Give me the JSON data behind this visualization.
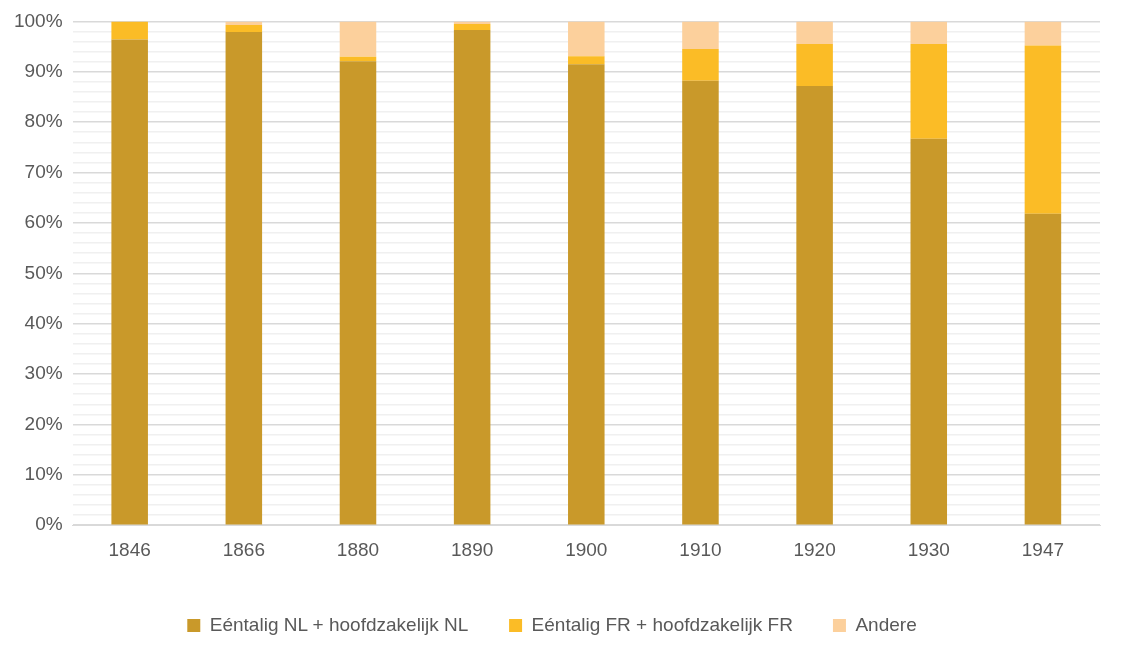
{
  "chart_data": {
    "type": "bar",
    "stacked": true,
    "categories": [
      "1846",
      "1866",
      "1880",
      "1890",
      "1900",
      "1910",
      "1920",
      "1930",
      "1947"
    ],
    "series": [
      {
        "name": "Eéntalig NL + hoofdzakelijk NL",
        "color": "#c9992a",
        "values": [
          96.4,
          97.9,
          92.1,
          98.3,
          91.5,
          88.2,
          87.2,
          76.7,
          61.8
        ]
      },
      {
        "name": "Eéntalig FR + hoofdzakelijk FR",
        "color": "#fbbc26",
        "values": [
          3.6,
          1.4,
          0.9,
          1.2,
          1.6,
          6.3,
          8.3,
          18.8,
          33.4
        ]
      },
      {
        "name": "Andere",
        "color": "#fcd09c",
        "values": [
          0,
          0.7,
          7.0,
          0.5,
          6.9,
          5.5,
          4.5,
          4.5,
          4.8
        ]
      }
    ],
    "ylim": [
      0,
      100
    ],
    "yticks": [
      {
        "value": 0,
        "label": "0%"
      },
      {
        "value": 2,
        "label": null
      },
      {
        "value": 4,
        "label": null
      },
      {
        "value": 6,
        "label": null
      },
      {
        "value": 8,
        "label": null
      },
      {
        "value": 10,
        "label": "10%"
      },
      {
        "value": 12,
        "label": null
      },
      {
        "value": 14,
        "label": null
      },
      {
        "value": 16,
        "label": null
      },
      {
        "value": 18,
        "label": null
      },
      {
        "value": 20,
        "label": "20%"
      },
      {
        "value": 22,
        "label": null
      },
      {
        "value": 24,
        "label": null
      },
      {
        "value": 26,
        "label": null
      },
      {
        "value": 28,
        "label": null
      },
      {
        "value": 30,
        "label": "30%"
      },
      {
        "value": 32,
        "label": null
      },
      {
        "value": 34,
        "label": null
      },
      {
        "value": 36,
        "label": null
      },
      {
        "value": 38,
        "label": null
      },
      {
        "value": 40,
        "label": "40%"
      },
      {
        "value": 42,
        "label": null
      },
      {
        "value": 44,
        "label": null
      },
      {
        "value": 46,
        "label": null
      },
      {
        "value": 48,
        "label": null
      },
      {
        "value": 50,
        "label": "50%"
      },
      {
        "value": 52,
        "label": null
      },
      {
        "value": 54,
        "label": null
      },
      {
        "value": 56,
        "label": null
      },
      {
        "value": 58,
        "label": null
      },
      {
        "value": 60,
        "label": "60%"
      },
      {
        "value": 62,
        "label": null
      },
      {
        "value": 64,
        "label": null
      },
      {
        "value": 66,
        "label": null
      },
      {
        "value": 68,
        "label": null
      },
      {
        "value": 70,
        "label": "70%"
      },
      {
        "value": 72,
        "label": null
      },
      {
        "value": 74,
        "label": null
      },
      {
        "value": 76,
        "label": null
      },
      {
        "value": 78,
        "label": null
      },
      {
        "value": 80,
        "label": "80%"
      },
      {
        "value": 82,
        "label": null
      },
      {
        "value": 84,
        "label": null
      },
      {
        "value": 86,
        "label": null
      },
      {
        "value": 88,
        "label": null
      },
      {
        "value": 90,
        "label": "90%"
      },
      {
        "value": 92,
        "label": null
      },
      {
        "value": 94,
        "label": null
      },
      {
        "value": 96,
        "label": null
      },
      {
        "value": 98,
        "label": null
      },
      {
        "value": 100,
        "label": "100%"
      }
    ],
    "grid": "y",
    "legend": "bottom"
  }
}
